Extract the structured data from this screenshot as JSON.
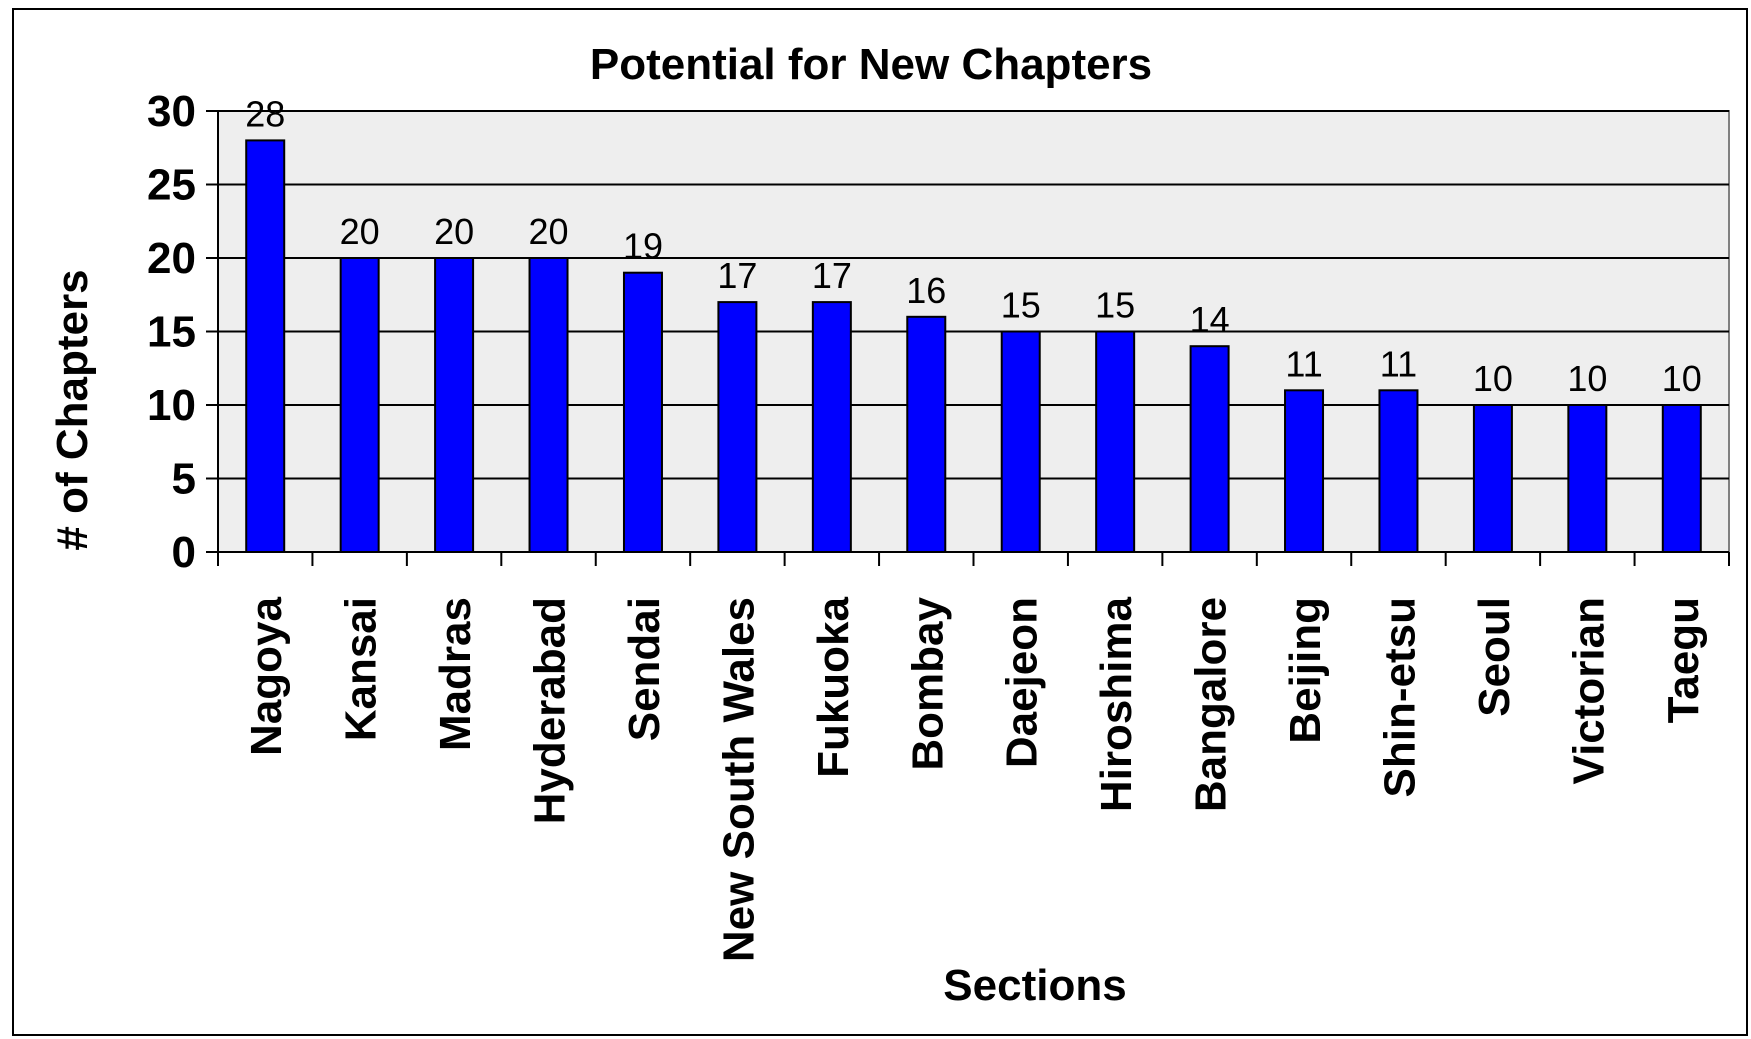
{
  "chart_data": {
    "type": "bar",
    "title": "Potential for New Chapters",
    "xlabel": "Sections",
    "ylabel": "# of Chapters",
    "categories": [
      "Nagoya",
      "Kansai",
      "Madras",
      "Hyderabad",
      "Sendai",
      "New South Wales",
      "Fukuoka",
      "Bombay",
      "Daejeon",
      "Hiroshima",
      "Bangalore",
      "Beijing",
      "Shin-etsu",
      "Seoul",
      "Victorian",
      "Taegu"
    ],
    "values": [
      28,
      20,
      20,
      20,
      19,
      17,
      17,
      16,
      15,
      15,
      14,
      11,
      11,
      10,
      10,
      10
    ],
    "ylim": [
      0,
      30
    ],
    "yticks": [
      0,
      5,
      10,
      15,
      20,
      25,
      30
    ],
    "grid": true,
    "legend": "none",
    "colors": {
      "bar": "#0000FF",
      "plot_background": "#EEEEEE"
    }
  }
}
